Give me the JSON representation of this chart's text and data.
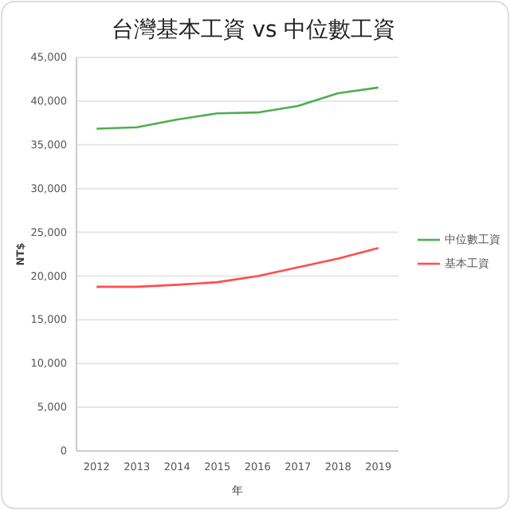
{
  "chart_data": {
    "type": "line",
    "title": "台灣基本工資 vs 中位數工資",
    "xlabel": "年",
    "ylabel": "NT$",
    "categories": [
      "2012",
      "2013",
      "2014",
      "2015",
      "2016",
      "2017",
      "2018",
      "2019"
    ],
    "series": [
      {
        "name": "中位數工資",
        "color": "#4caf50",
        "values": [
          36850,
          37000,
          37900,
          38600,
          38700,
          39450,
          40900,
          41550
        ]
      },
      {
        "name": "基本工資",
        "color": "#ff4d4d",
        "values": [
          18780,
          18780,
          19000,
          19300,
          20000,
          21000,
          22000,
          23200
        ]
      }
    ],
    "ylim": [
      0,
      45000
    ],
    "yticks": [
      {
        "value": 0,
        "label": "0"
      },
      {
        "value": 5000,
        "label": "5,000"
      },
      {
        "value": 10000,
        "label": "10,000"
      },
      {
        "value": 15000,
        "label": "15,000"
      },
      {
        "value": 20000,
        "label": "20,000"
      },
      {
        "value": 25000,
        "label": "25,000"
      },
      {
        "value": 30000,
        "label": "30,000"
      },
      {
        "value": 35000,
        "label": "35,000"
      },
      {
        "value": 40000,
        "label": "40,000"
      },
      {
        "value": 45000,
        "label": "45,000"
      }
    ],
    "grid": "y",
    "legend": "right",
    "marker": "none",
    "line_style": "solid"
  }
}
